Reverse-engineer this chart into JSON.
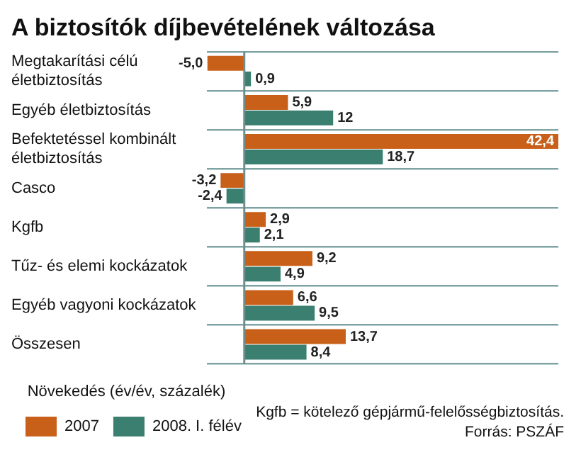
{
  "chart_data": {
    "type": "bar",
    "orientation": "horizontal",
    "title": "A biztosítók díjbevételének változása",
    "categories": [
      "Megtakarítási célú életbiztosítás",
      "Egyéb életbiztosítás",
      "Befektetéssel kombinált életbiztosítás",
      "Casco",
      "Kgfb",
      "Tűz- és elemi kockázatok",
      "Egyéb vagyoni kockázatok",
      "Összesen"
    ],
    "series": [
      {
        "name": "2007",
        "color": "#c8601a",
        "values": [
          -5.0,
          5.9,
          42.4,
          -3.2,
          2.9,
          9.2,
          6.6,
          13.7
        ],
        "value_labels": [
          "-5,0",
          "5,9",
          "42,4",
          "-3,2",
          "2,9",
          "9,2",
          "6,6",
          "13,7"
        ]
      },
      {
        "name": "2008. I. félév",
        "color": "#3a7f70",
        "values": [
          0.9,
          12,
          18.7,
          -2.4,
          2.1,
          4.9,
          9.5,
          8.4
        ],
        "value_labels": [
          "0,9",
          "12",
          "18,7",
          "-2,4",
          "2,1",
          "4,9",
          "9,5",
          "8,4"
        ]
      }
    ],
    "legend": "bottom left",
    "legend_title": "Növekedés (év/év, százalék)",
    "grid": "y",
    "tick_labels": "y",
    "annotations": [
      "Kgfb = kötelező gépjármű-felelősségbiztosítás.",
      "Forrás: PSZÁF"
    ]
  }
}
